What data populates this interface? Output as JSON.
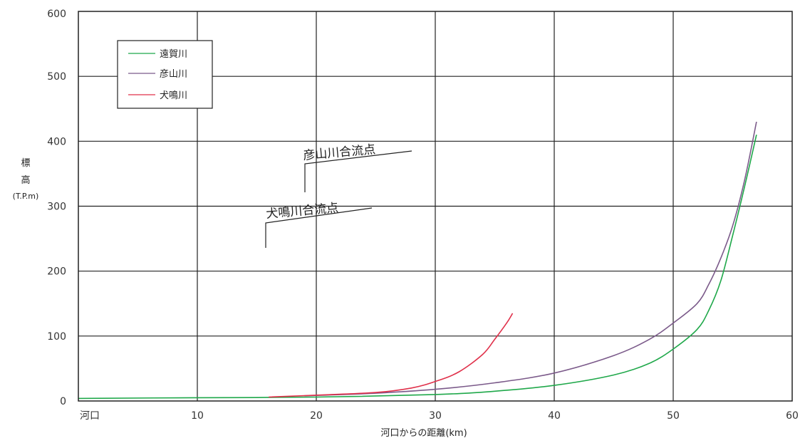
{
  "chart_data": {
    "type": "line",
    "ylabel_lines": [
      "標",
      "高",
      "(T.P.m)"
    ],
    "xlabel": "河口からの距離(km)",
    "xlim": [
      0,
      60
    ],
    "ylim": [
      0,
      600
    ],
    "x_ticks": [
      {
        "value": 0,
        "label": "河口"
      },
      {
        "value": 10,
        "label": "10"
      },
      {
        "value": 20,
        "label": "20"
      },
      {
        "value": 30,
        "label": "30"
      },
      {
        "value": 40,
        "label": "40"
      },
      {
        "value": 50,
        "label": "50"
      },
      {
        "value": 60,
        "label": "60"
      }
    ],
    "y_ticks": [
      {
        "value": 0,
        "label": "0"
      },
      {
        "value": 100,
        "label": "100"
      },
      {
        "value": 200,
        "label": "200"
      },
      {
        "value": 300,
        "label": "300"
      },
      {
        "value": 400,
        "label": "400"
      },
      {
        "value": 500,
        "label": "500"
      },
      {
        "value": 600,
        "label": "600"
      }
    ],
    "grid": true,
    "legend_position": "top-left",
    "series": [
      {
        "name": "遠賀川",
        "color": "#1fa84a",
        "x": [
          0,
          10,
          20,
          30,
          35,
          40,
          45,
          48,
          50,
          52,
          53,
          54,
          55,
          56,
          57
        ],
        "y": [
          4,
          5,
          6,
          10,
          15,
          24,
          40,
          58,
          80,
          110,
          140,
          185,
          255,
          330,
          410
        ]
      },
      {
        "name": "彦山川",
        "color": "#7b5a8a",
        "x": [
          19,
          25,
          30,
          35,
          40,
          45,
          48,
          50,
          52,
          53,
          54,
          55,
          56,
          57
        ],
        "y": [
          8,
          12,
          18,
          28,
          43,
          70,
          95,
          120,
          150,
          180,
          220,
          270,
          340,
          430
        ]
      },
      {
        "name": "犬鳴川",
        "color": "#e0304a",
        "x": [
          16,
          20,
          25,
          28,
          30,
          32,
          34,
          35,
          36,
          36.5
        ],
        "y": [
          6,
          9,
          13,
          20,
          30,
          45,
          72,
          95,
          120,
          135
        ]
      }
    ],
    "annotations": [
      {
        "text": "彦山川合流点",
        "x": 19,
        "y": 315
      },
      {
        "text": "犬鳴川合流点",
        "x": 16,
        "y": 250
      }
    ]
  }
}
